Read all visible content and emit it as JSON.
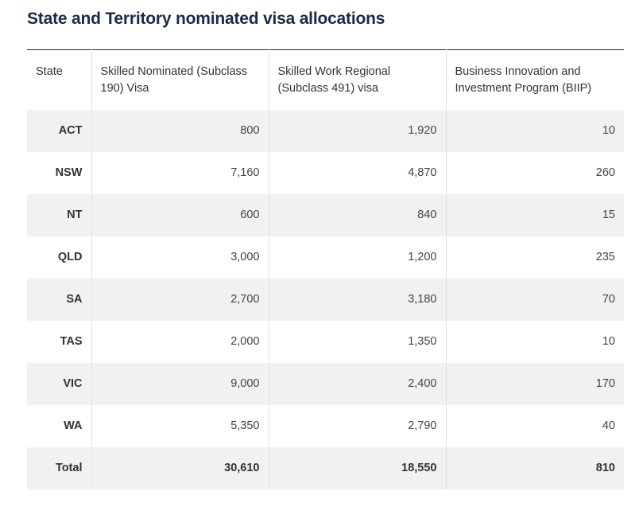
{
  "title": "State and Territory nominated visa allocations",
  "table": {
    "headers": [
      "State",
      "Skilled Nominated (Subclass 190) Visa",
      "Skilled Work Regional (Subclass 491) visa",
      "Business Innovation and Investment Program (BIIP)"
    ],
    "rows": [
      [
        "ACT",
        "800",
        "1,920",
        "10"
      ],
      [
        "NSW",
        "7,160",
        "4,870",
        "260"
      ],
      [
        "NT",
        "600",
        "840",
        "15"
      ],
      [
        "QLD",
        "3,000",
        "1,200",
        "235"
      ],
      [
        "SA",
        "2,700",
        "3,180",
        "70"
      ],
      [
        "TAS",
        "2,000",
        "1,350",
        "10"
      ],
      [
        "VIC",
        "9,000",
        "2,400",
        "170"
      ],
      [
        "WA",
        "5,350",
        "2,790",
        "40"
      ]
    ],
    "total": [
      "Total",
      "30,610",
      "18,550",
      "810"
    ]
  },
  "colors": {
    "title": "#1a2b4a",
    "stripe": "#f1f1f1",
    "border": "#e2e2e2"
  }
}
